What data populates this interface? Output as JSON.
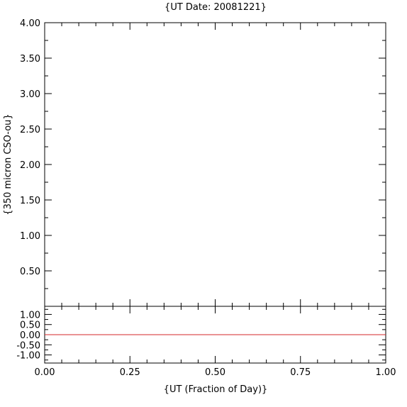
{
  "chart_data": [
    {
      "type": "line",
      "title": "{UT Date: 20081221}",
      "ylabel": "{350 micron CSO-ou}",
      "xlabel": "",
      "xlim": [
        0.0,
        1.0
      ],
      "ylim": [
        0.0,
        4.0
      ],
      "y_ticks_labeled": [
        "0.50",
        "1.00",
        "1.50",
        "2.00",
        "2.50",
        "3.00",
        "3.50",
        "4.00"
      ],
      "y_tick_values": [
        0.5,
        1.0,
        1.5,
        2.0,
        2.5,
        3.0,
        3.5,
        4.0
      ],
      "series": []
    },
    {
      "type": "line",
      "title": "",
      "xlabel": "{UT (Fraction of Day)}",
      "ylabel": "",
      "xlim": [
        0.0,
        1.0
      ],
      "ylim": [
        -1.4,
        1.4
      ],
      "x_ticks_labeled": [
        "0.00",
        "0.25",
        "0.50",
        "0.75",
        "1.00"
      ],
      "x_tick_values": [
        0.0,
        0.25,
        0.5,
        0.75,
        1.0
      ],
      "y_ticks_labeled": [
        "1.00",
        "0.50",
        "0.00",
        "-0.50",
        "-1.00"
      ],
      "y_tick_values": [
        1.0,
        0.5,
        0.0,
        -0.5,
        -1.0
      ],
      "series": [
        {
          "color": "#d62728",
          "x": [
            0.0,
            1.0
          ],
          "y": [
            0.0,
            0.0
          ]
        }
      ]
    }
  ]
}
